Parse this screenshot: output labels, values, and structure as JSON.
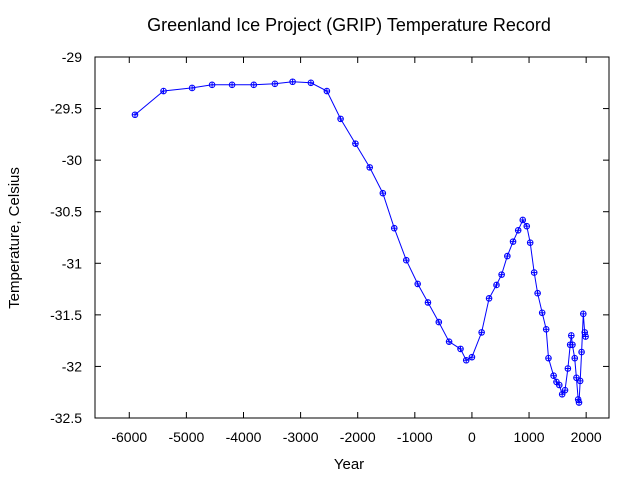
{
  "chart_data": {
    "type": "line",
    "title": "Greenland Ice Project (GRIP) Temperature Record",
    "xlabel": "Year",
    "ylabel": "Temperature, Celsius",
    "xlim": [
      -6600,
      2400
    ],
    "ylim": [
      -32.5,
      -29
    ],
    "xticks": [
      -6000,
      -5000,
      -4000,
      -3000,
      -2000,
      -1000,
      0,
      1000,
      2000
    ],
    "yticks": [
      -29,
      -29.5,
      -30,
      -30.5,
      -31,
      -31.5,
      -32,
      -32.5
    ],
    "grid": false,
    "legend": "none",
    "series": [
      {
        "color": "#0000ff",
        "marker": "circle-plus",
        "x": [
          -5900,
          -5400,
          -4900,
          -4550,
          -4200,
          -3820,
          -3450,
          -3140,
          -2820,
          -2540,
          -2300,
          -2040,
          -1790,
          -1560,
          -1360,
          -1150,
          -950,
          -770,
          -580,
          -400,
          -200,
          -100,
          0,
          170,
          300,
          430,
          520,
          620,
          720,
          810,
          890,
          960,
          1020,
          1090,
          1150,
          1230,
          1300,
          1340,
          1430,
          1480,
          1530,
          1580,
          1630,
          1680,
          1720,
          1740,
          1760,
          1800,
          1830,
          1860,
          1875,
          1895,
          1920,
          1950,
          1975,
          1990
        ],
        "y": [
          -29.56,
          -29.33,
          -29.3,
          -29.27,
          -29.27,
          -29.27,
          -29.26,
          -29.24,
          -29.25,
          -29.33,
          -29.6,
          -29.84,
          -30.07,
          -30.32,
          -30.66,
          -30.97,
          -31.2,
          -31.38,
          -31.57,
          -31.76,
          -31.83,
          -31.94,
          -31.91,
          -31.67,
          -31.34,
          -31.21,
          -31.11,
          -30.93,
          -30.79,
          -30.68,
          -30.58,
          -30.64,
          -30.8,
          -31.09,
          -31.29,
          -31.48,
          -31.64,
          -31.92,
          -32.09,
          -32.15,
          -32.18,
          -32.27,
          -32.23,
          -32.02,
          -31.79,
          -31.7,
          -31.79,
          -31.92,
          -32.11,
          -32.32,
          -32.35,
          -32.14,
          -31.86,
          -31.49,
          -31.67,
          -31.71
        ]
      }
    ]
  }
}
